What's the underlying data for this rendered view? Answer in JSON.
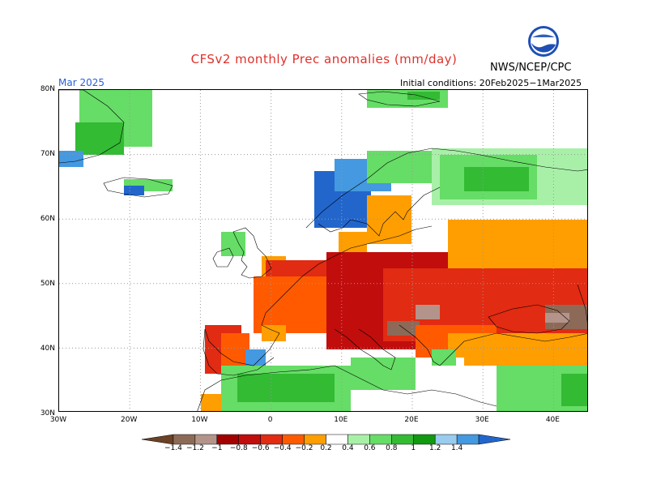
{
  "title": "CFSv2 monthly Prec anomalies (mm/day)",
  "agency": "NWS/NCEP/CPC",
  "logo_text": "NOAA",
  "month": "Mar 2025",
  "initial_conditions": "Initial conditions: 20Feb2025−1Mar2025",
  "lat_labels": [
    "80N",
    "70N",
    "60N",
    "50N",
    "40N",
    "30N"
  ],
  "lon_labels": [
    "30W",
    "20W",
    "10W",
    "0",
    "10E",
    "20E",
    "30E",
    "40E"
  ],
  "colorbar": {
    "ticks": [
      "−1.4",
      "−1.2",
      "−1",
      "−0.8",
      "−0.6",
      "−0.4",
      "−0.2",
      "0.2",
      "0.4",
      "0.6",
      "0.8",
      "1",
      "1.2",
      "1.4"
    ],
    "colors": [
      "#6b4226",
      "#8c6a57",
      "#b4948a",
      "#a30000",
      "#c20d0d",
      "#e12b12",
      "#ff5a00",
      "#ff9e00",
      "#ffffff",
      "#a8f0a8",
      "#66dd66",
      "#33bb33",
      "#119911",
      "#99ccee",
      "#4499e0",
      "#2266cc"
    ]
  },
  "map": {
    "region": "Europe",
    "lon_range": [
      -30,
      45
    ],
    "lat_range": [
      30,
      80
    ],
    "palette": {
      "land_dry_strong": "#c20d0d",
      "land_dry": "#e12b12",
      "land_dry_mod": "#ff5a00",
      "land_dry_weak": "#ff9e00",
      "wet_weak": "#a8f0a8",
      "wet": "#66dd66",
      "wet_mod": "#33bb33",
      "wet_strong": "#119911",
      "blue": "#4499e0",
      "blue_dark": "#2266cc",
      "brown": "#8c6a57",
      "tan": "#b4948a"
    }
  }
}
